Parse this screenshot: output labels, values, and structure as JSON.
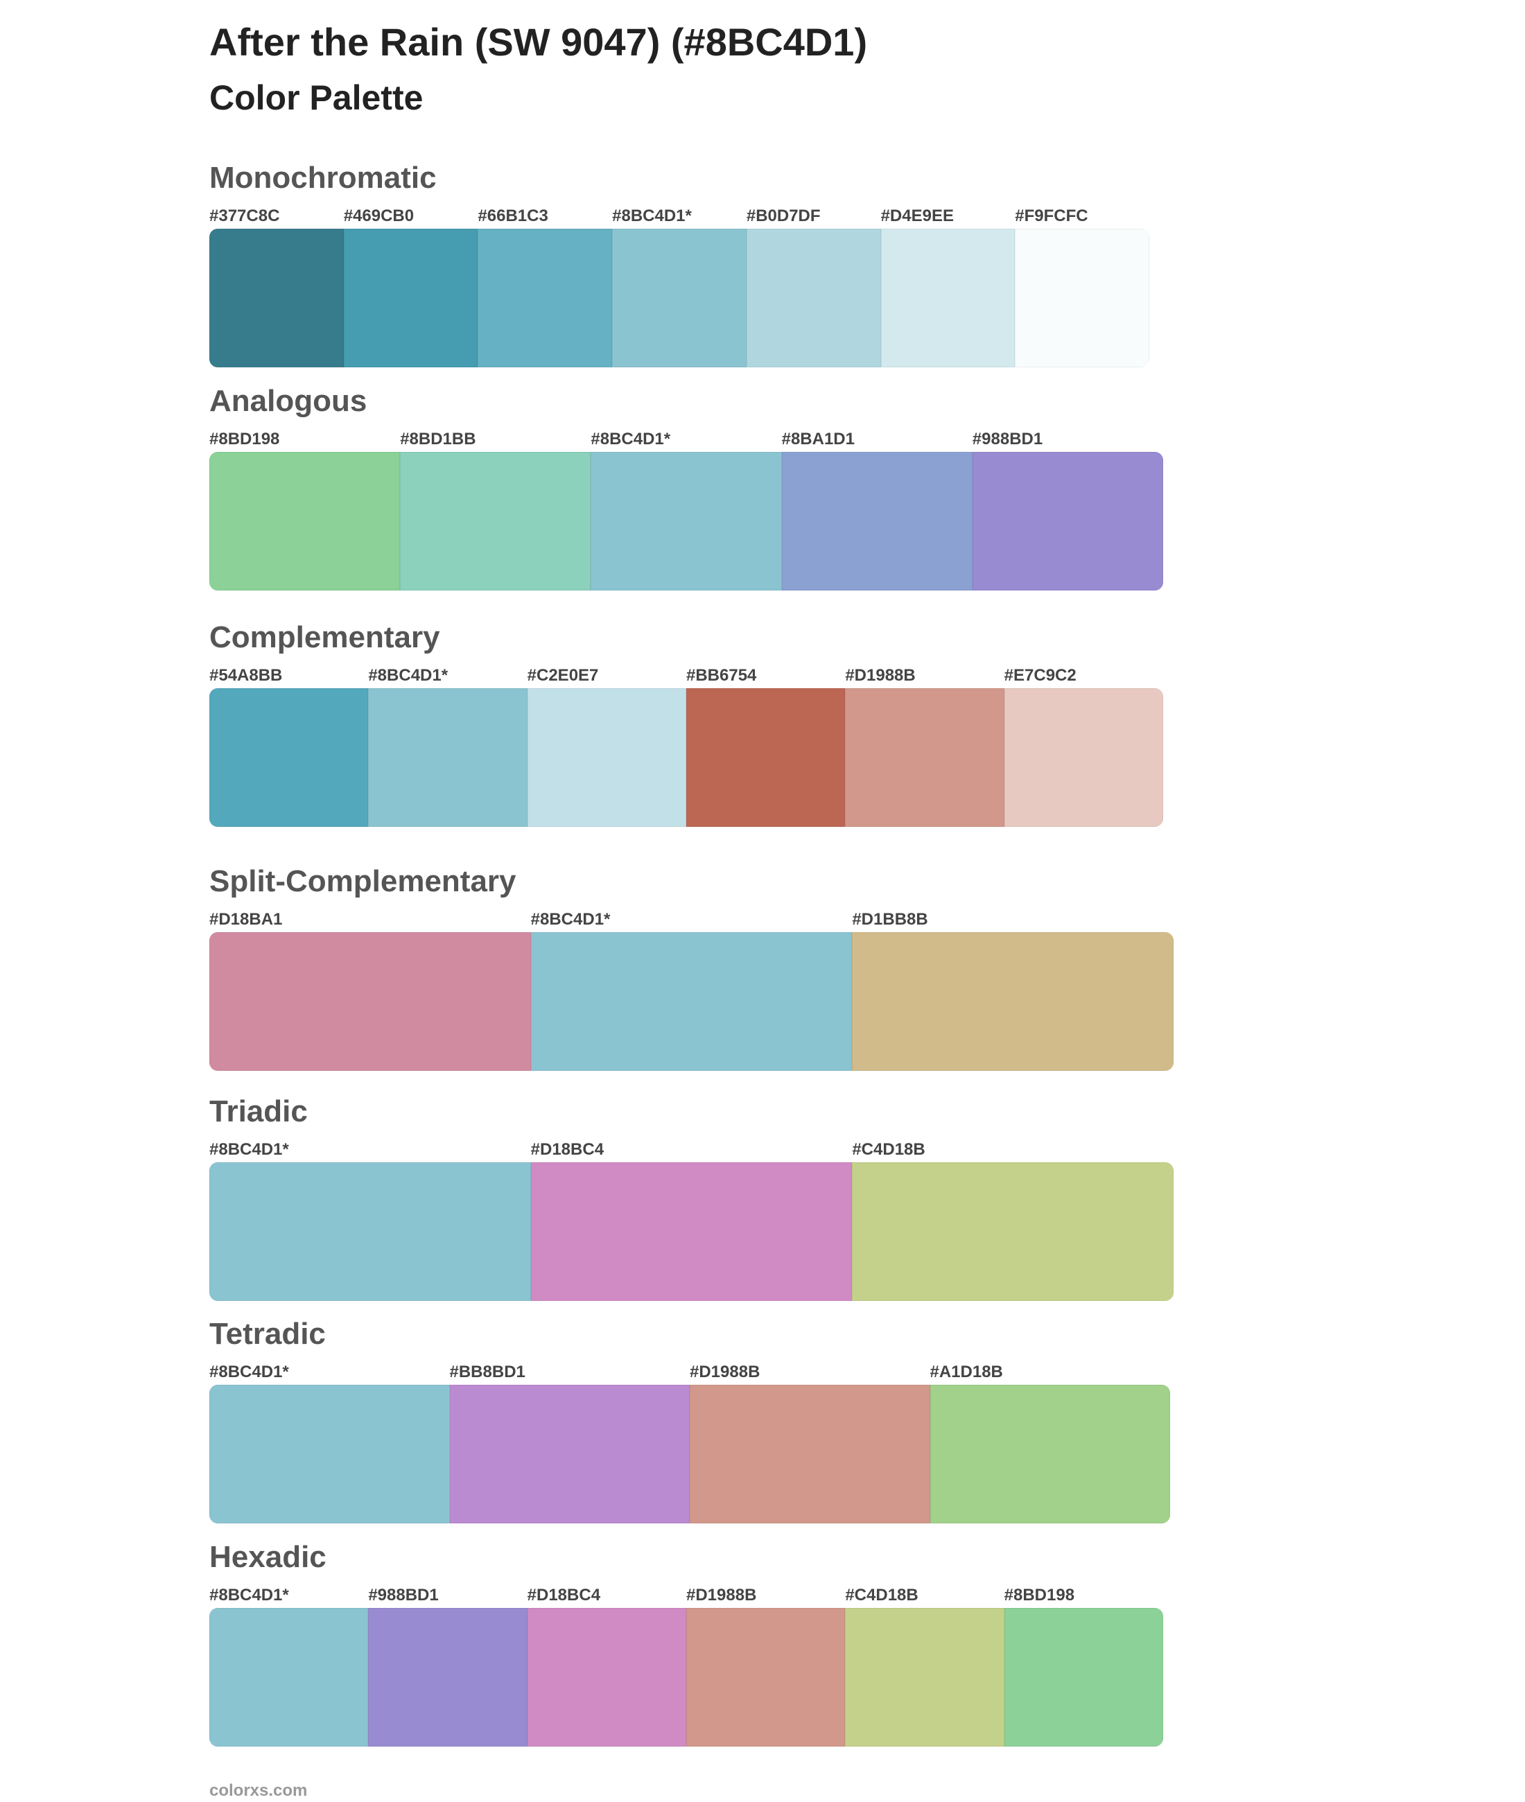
{
  "header": {
    "title": "After the Rain (SW 9047) (#8BC4D1)",
    "subtitle": "Color Palette"
  },
  "sections": [
    {
      "name": "Monochromatic",
      "swatches": [
        {
          "label": "#377C8C",
          "color": "#377C8C"
        },
        {
          "label": "#469CB0",
          "color": "#469CB0"
        },
        {
          "label": "#66B1C3",
          "color": "#66B1C3"
        },
        {
          "label": "#8BC4D1*",
          "color": "#8BC4D1"
        },
        {
          "label": "#B0D7DF",
          "color": "#B0D7DF"
        },
        {
          "label": "#D4E9EE",
          "color": "#D4E9EE"
        },
        {
          "label": "#F9FCFC",
          "color": "#F9FCFC"
        }
      ]
    },
    {
      "name": "Analogous",
      "swatches": [
        {
          "label": "#8BD198",
          "color": "#8BD198"
        },
        {
          "label": "#8BD1BB",
          "color": "#8BD1BB"
        },
        {
          "label": "#8BC4D1*",
          "color": "#8BC4D1"
        },
        {
          "label": "#8BA1D1",
          "color": "#8BA1D1"
        },
        {
          "label": "#988BD1",
          "color": "#988BD1"
        }
      ]
    },
    {
      "name": "Complementary",
      "swatches": [
        {
          "label": "#54A8BB",
          "color": "#54A8BB"
        },
        {
          "label": "#8BC4D1*",
          "color": "#8BC4D1"
        },
        {
          "label": "#C2E0E7",
          "color": "#C2E0E7"
        },
        {
          "label": "#BB6754",
          "color": "#BB6754"
        },
        {
          "label": "#D1988B",
          "color": "#D1988B"
        },
        {
          "label": "#E7C9C2",
          "color": "#E7C9C2"
        }
      ]
    },
    {
      "name": "Split-Complementary",
      "swatches": [
        {
          "label": "#D18BA1",
          "color": "#D18BA1"
        },
        {
          "label": "#8BC4D1*",
          "color": "#8BC4D1"
        },
        {
          "label": "#D1BB8B",
          "color": "#D1BB8B"
        }
      ]
    },
    {
      "name": "Triadic",
      "swatches": [
        {
          "label": "#8BC4D1*",
          "color": "#8BC4D1"
        },
        {
          "label": "#D18BC4",
          "color": "#D18BC4"
        },
        {
          "label": "#C4D18B",
          "color": "#C4D18B"
        }
      ]
    },
    {
      "name": "Tetradic",
      "swatches": [
        {
          "label": "#8BC4D1*",
          "color": "#8BC4D1"
        },
        {
          "label": "#BB8BD1",
          "color": "#BB8BD1"
        },
        {
          "label": "#D1988B",
          "color": "#D1988B"
        },
        {
          "label": "#A1D18B",
          "color": "#A1D18B"
        }
      ]
    },
    {
      "name": "Hexadic",
      "swatches": [
        {
          "label": "#8BC4D1*",
          "color": "#8BC4D1"
        },
        {
          "label": "#988BD1",
          "color": "#988BD1"
        },
        {
          "label": "#D18BC4",
          "color": "#D18BC4"
        },
        {
          "label": "#D1988B",
          "color": "#D1988B"
        },
        {
          "label": "#C4D18B",
          "color": "#C4D18B"
        },
        {
          "label": "#8BD198",
          "color": "#8BD198"
        }
      ]
    }
  ],
  "footer": "colorxs.com"
}
